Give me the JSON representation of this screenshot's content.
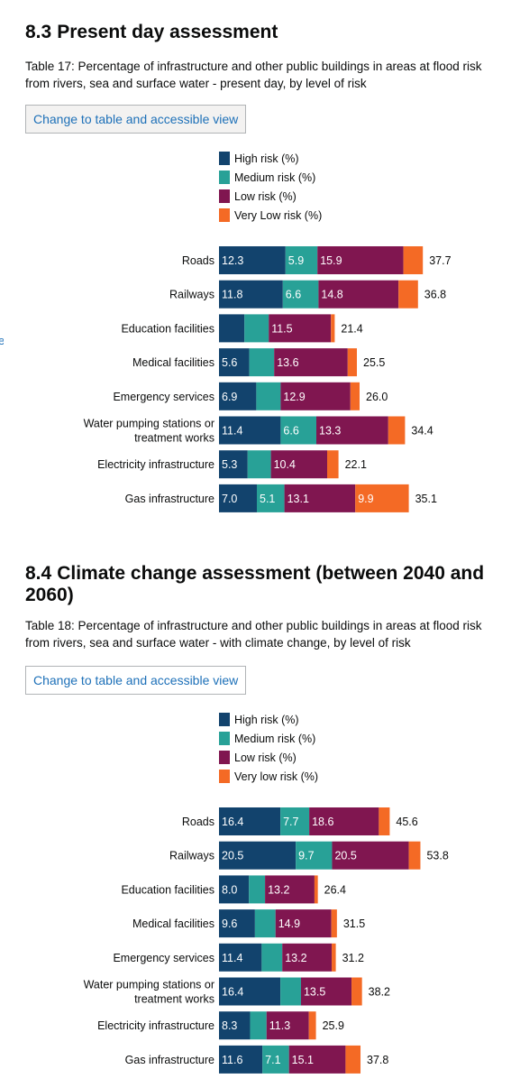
{
  "sections": [
    {
      "number": "8.3",
      "title": "Present day assessment",
      "caption": "Table 17: Percentage of infrastructure and other public buildings in areas at flood risk from rivers, sea and surface water - present day, by level of risk",
      "toggle_label": "Change to table and accessible view"
    },
    {
      "number": "8.4",
      "title": "Climate change assessment (between 2040 and 2060)",
      "caption": "Table 18: Percentage of infrastructure and other public buildings in areas at flood risk from rivers, sea and surface water - with climate change, by level of risk",
      "toggle_label": "Change to table and accessible view"
    }
  ],
  "edge_link_text": "e",
  "colors": {
    "high": "#12436d",
    "medium": "#28a197",
    "low": "#801650",
    "very_low": "#f46a25",
    "segment_label": "#ffffff",
    "axis_label": "#0b0c0c",
    "link": "#1d70b8"
  },
  "chart_data": [
    {
      "type": "bar",
      "orientation": "horizontal",
      "stacked": true,
      "title": "",
      "legend_position": "top-left",
      "grid": false,
      "categories": [
        "Roads",
        "Railways",
        "Education facilities",
        "Medical facilities",
        "Emergency services",
        "Water pumping stations or treatment works",
        "Electricity infrastructure",
        "Gas infrastructure"
      ],
      "category_lines": [
        [
          "Roads"
        ],
        [
          "Railways"
        ],
        [
          "Education facilities"
        ],
        [
          "Medical facilities"
        ],
        [
          "Emergency services"
        ],
        [
          "Water pumping stations or",
          "treatment works"
        ],
        [
          "Electricity infrastructure"
        ],
        [
          "Gas infrastructure"
        ]
      ],
      "series": [
        {
          "name": "High risk (%)",
          "values": [
            12.3,
            11.8,
            4.7,
            5.6,
            6.9,
            11.4,
            5.3,
            7.0
          ]
        },
        {
          "name": "Medium risk (%)",
          "values": [
            5.9,
            6.6,
            4.5,
            4.6,
            4.5,
            6.6,
            4.3,
            5.1
          ]
        },
        {
          "name": "Low risk (%)",
          "values": [
            15.9,
            14.8,
            11.5,
            13.6,
            12.9,
            13.3,
            10.4,
            13.1
          ]
        },
        {
          "name": "Very Low risk (%)",
          "values": [
            3.6,
            3.6,
            0.7,
            1.7,
            1.7,
            3.1,
            2.1,
            9.9
          ]
        }
      ],
      "totals": [
        37.7,
        36.8,
        21.4,
        25.5,
        26.0,
        34.4,
        22.1,
        35.1
      ],
      "xlim": [
        0,
        45
      ],
      "xlabel": "",
      "ylabel": ""
    },
    {
      "type": "bar",
      "orientation": "horizontal",
      "stacked": true,
      "title": "",
      "legend_position": "top-left",
      "grid": false,
      "categories": [
        "Roads",
        "Railways",
        "Education facilities",
        "Medical facilities",
        "Emergency services",
        "Water pumping stations or treatment works",
        "Electricity infrastructure",
        "Gas infrastructure"
      ],
      "category_lines": [
        [
          "Roads"
        ],
        [
          "Railways"
        ],
        [
          "Education facilities"
        ],
        [
          "Medical facilities"
        ],
        [
          "Emergency services"
        ],
        [
          "Water pumping stations or",
          "treatment works"
        ],
        [
          "Electricity infrastructure"
        ],
        [
          "Gas infrastructure"
        ]
      ],
      "series": [
        {
          "name": "High risk (%)",
          "values": [
            16.4,
            20.5,
            8.0,
            9.6,
            11.4,
            16.4,
            8.3,
            11.6
          ]
        },
        {
          "name": "Medium risk (%)",
          "values": [
            7.7,
            9.7,
            4.3,
            5.5,
            5.5,
            5.5,
            4.4,
            7.1
          ]
        },
        {
          "name": "Low risk (%)",
          "values": [
            18.6,
            20.5,
            13.2,
            14.9,
            13.2,
            13.5,
            11.3,
            15.1
          ]
        },
        {
          "name": "Very low risk (%)",
          "values": [
            2.9,
            3.1,
            0.9,
            1.5,
            1.1,
            2.8,
            1.9,
            4.0
          ]
        }
      ],
      "totals": [
        45.6,
        53.8,
        26.4,
        31.5,
        31.2,
        38.2,
        25.9,
        37.8
      ],
      "xlim": [
        0,
        65
      ],
      "xlabel": "",
      "ylabel": ""
    }
  ]
}
